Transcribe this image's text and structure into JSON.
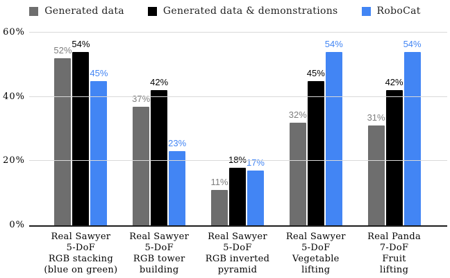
{
  "chart_data": {
    "type": "bar",
    "title": "",
    "xlabel": "",
    "ylabel": "",
    "categories": [
      "Real Sawyer 5-DoF RGB stacking (blue on green)",
      "Real Sawyer 5-DoF RGB tower building",
      "Real Sawyer 5-DoF RGB inverted pyramid",
      "Real Sawyer 5-DoF Vegetable lifting",
      "Real Panda 7-DoF Fruit lifting"
    ],
    "category_lines": [
      [
        "Real Sawyer",
        "5-DoF",
        "RGB stacking",
        "(blue on green)"
      ],
      [
        "Real Sawyer",
        "5-DoF",
        "RGB tower",
        "building"
      ],
      [
        "Real Sawyer",
        "5-DoF",
        "RGB inverted",
        "pyramid"
      ],
      [
        "Real Sawyer",
        "5-DoF",
        "Vegetable",
        "lifting"
      ],
      [
        "Real Panda",
        "7-DoF",
        "Fruit",
        "lifting"
      ]
    ],
    "series": [
      {
        "name": "Generated data",
        "color": "#6e6e6e",
        "label_color": "#7e7e7e",
        "values": [
          52,
          37,
          11,
          32,
          31
        ]
      },
      {
        "name": "Generated data & demonstrations",
        "color": "#000000",
        "label_color": "#000000",
        "values": [
          54,
          42,
          18,
          45,
          42
        ]
      },
      {
        "name": "RoboCat",
        "color": "#4285f4",
        "label_color": "#4285f4",
        "values": [
          45,
          23,
          17,
          54,
          54
        ]
      }
    ],
    "value_suffix": "%",
    "ylim": [
      0,
      60
    ],
    "yticks": [
      0,
      20,
      40,
      60
    ],
    "ytick_labels": [
      "0%",
      "20%",
      "40%",
      "60%"
    ],
    "legend_position": "top",
    "grid": true,
    "grid_color": "#d9d9d9",
    "baseline_color": "#1c1c1c",
    "background_color": "#ffffff"
  }
}
